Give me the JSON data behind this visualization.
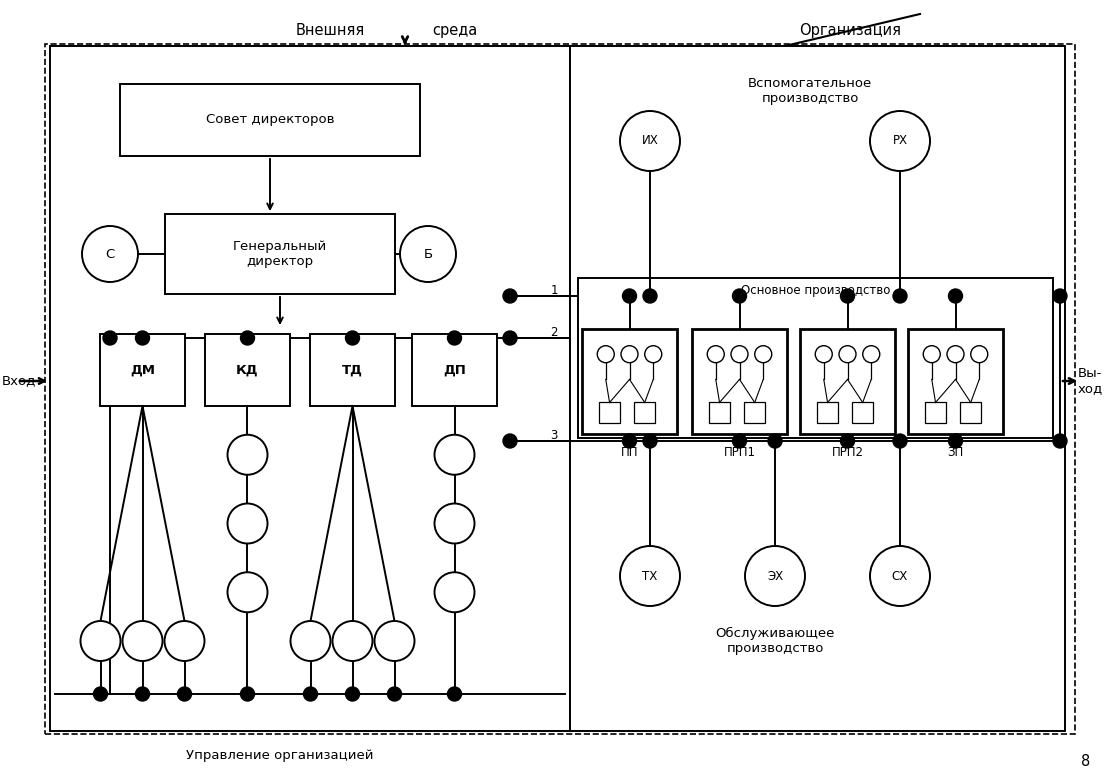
{
  "background_color": "#ffffff",
  "title_org": "Организация",
  "title_env": "Внешняя",
  "title_env2": "среда",
  "label_vspom": "Вспомогательное\nпроизводство",
  "label_osnov": "Основное производство",
  "label_upravl": "Управление организацией",
  "label_obsluzhiv": "Обслуживающее\nпроизводство",
  "label_vhod": "Вход",
  "label_vyhod": "Вы-\nход",
  "label_1": "1",
  "label_2": "2",
  "label_3": "3",
  "label_sovet": "Совет директоров",
  "label_gendir": "Генеральный\nдиректор",
  "label_C": "С",
  "label_B": "Б",
  "label_IH": "ИХ",
  "label_RH": "РХ",
  "label_TX": "ТХ",
  "label_EH": "ЭХ",
  "label_SH": "СХ",
  "dept_labels": [
    "ДМ",
    "КД",
    "ТД",
    "ДП"
  ],
  "prod_labels": [
    "ПП",
    "ПРП1",
    "ПРП2",
    "ЗП"
  ]
}
